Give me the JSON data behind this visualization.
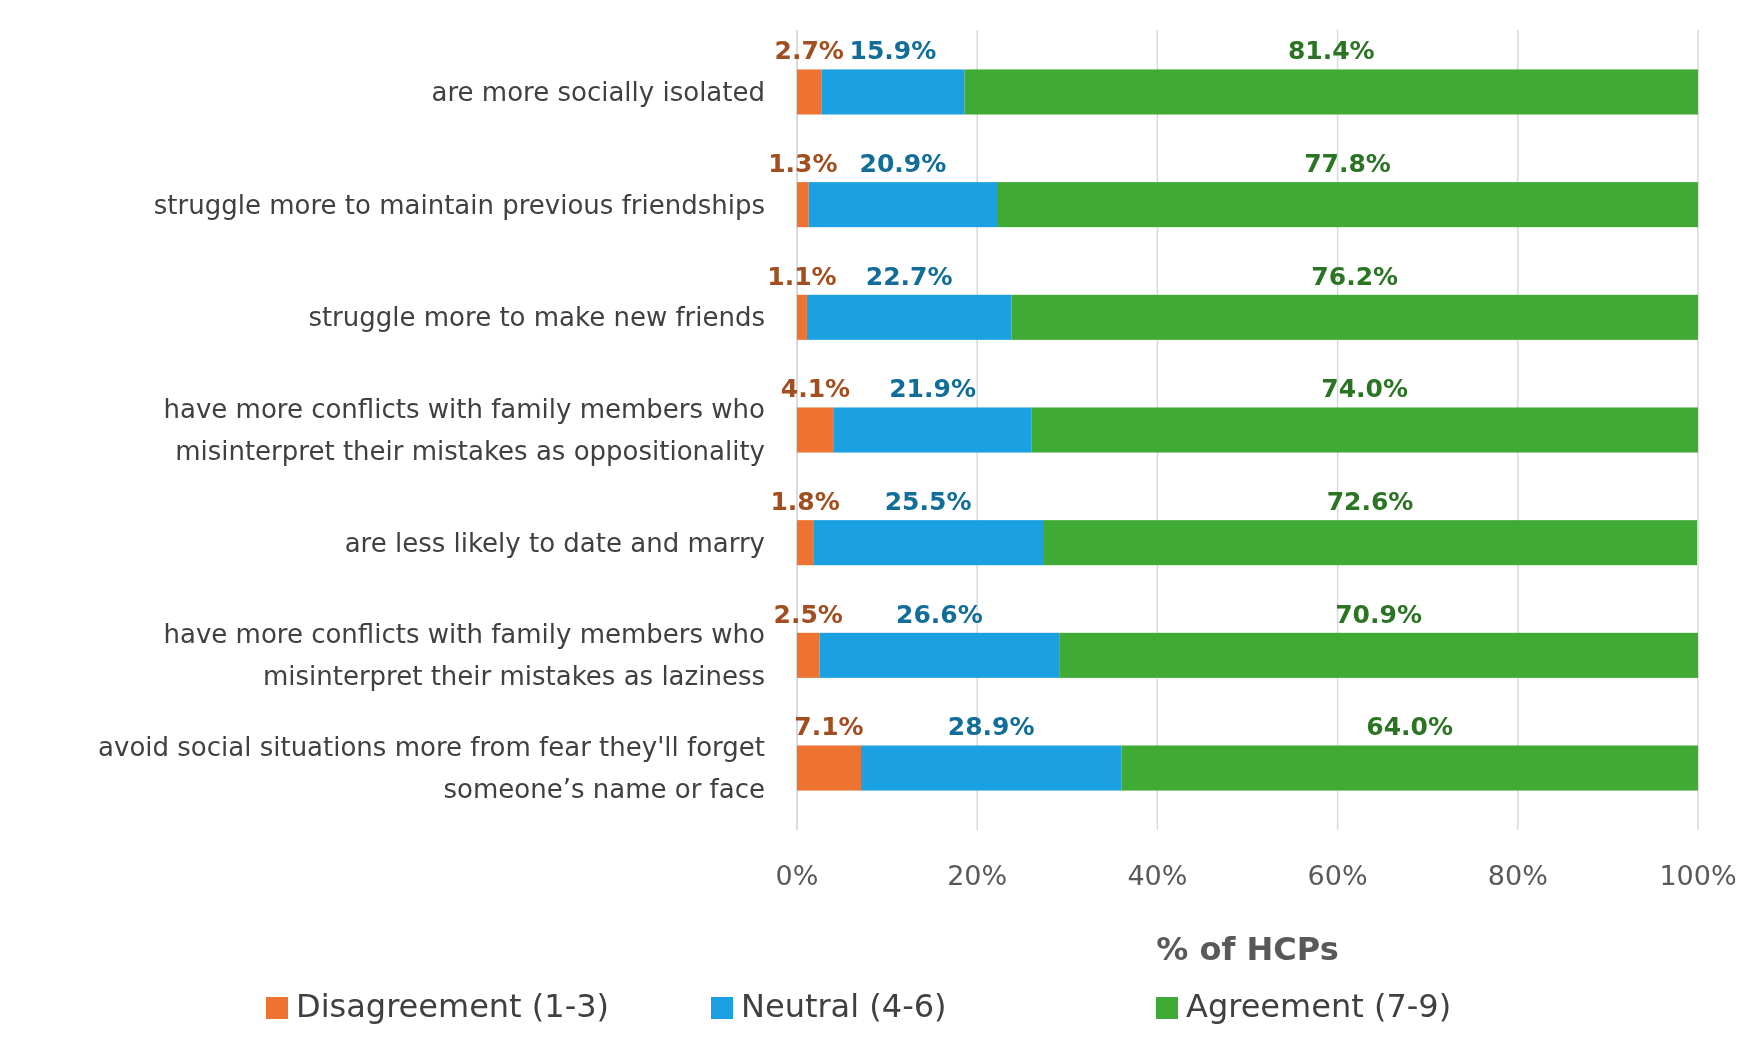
{
  "chart_data": {
    "type": "bar",
    "orientation": "horizontal",
    "stacked": true,
    "xlabel": "% of HCPs",
    "categories": [
      "are more socially isolated",
      "struggle more to maintain previous friendships",
      "struggle more to make new friends",
      "have more conflicts with family members who misinterpret their mistakes as oppositionality",
      "are less likely to date and marry",
      "have more conflicts with family members who misinterpret their mistakes as laziness",
      "avoid social situations more from fear they'll forget someone’s name or face"
    ],
    "series": [
      {
        "name": "Disagreement (1-3)",
        "color": "#ee7330",
        "values": [
          2.7,
          1.3,
          1.1,
          4.1,
          1.8,
          2.5,
          7.1
        ],
        "value_labels": [
          "2.7%",
          "1.3%",
          "1.1%",
          "4.1%",
          "1.8%",
          "2.5%",
          "7.1%"
        ]
      },
      {
        "name": "Neutral (4-6)",
        "color": "#1ba1e2",
        "values": [
          15.9,
          20.9,
          22.7,
          21.9,
          25.5,
          26.6,
          28.9
        ],
        "value_labels": [
          "15.9%",
          "20.9%",
          "22.7%",
          "21.9%",
          "25.5%",
          "26.6%",
          "28.9%"
        ]
      },
      {
        "name": "Agreement (7-9)",
        "color": "#3fab35",
        "values": [
          81.4,
          77.8,
          76.2,
          74.0,
          72.6,
          70.9,
          64.0
        ],
        "value_labels": [
          "81.4%",
          "77.8%",
          "76.2%",
          "74.0%",
          "72.6%",
          "70.9%",
          "64.0%"
        ]
      }
    ],
    "xlim": [
      0,
      100
    ],
    "xticks": [
      {
        "value": 0,
        "label": "0%"
      },
      {
        "value": 20,
        "label": "20%"
      },
      {
        "value": 40,
        "label": "40%"
      },
      {
        "value": 60,
        "label": "60%"
      },
      {
        "value": 80,
        "label": "80%"
      },
      {
        "value": 100,
        "label": "100%"
      }
    ],
    "grid": "x",
    "legend": "bottom"
  }
}
